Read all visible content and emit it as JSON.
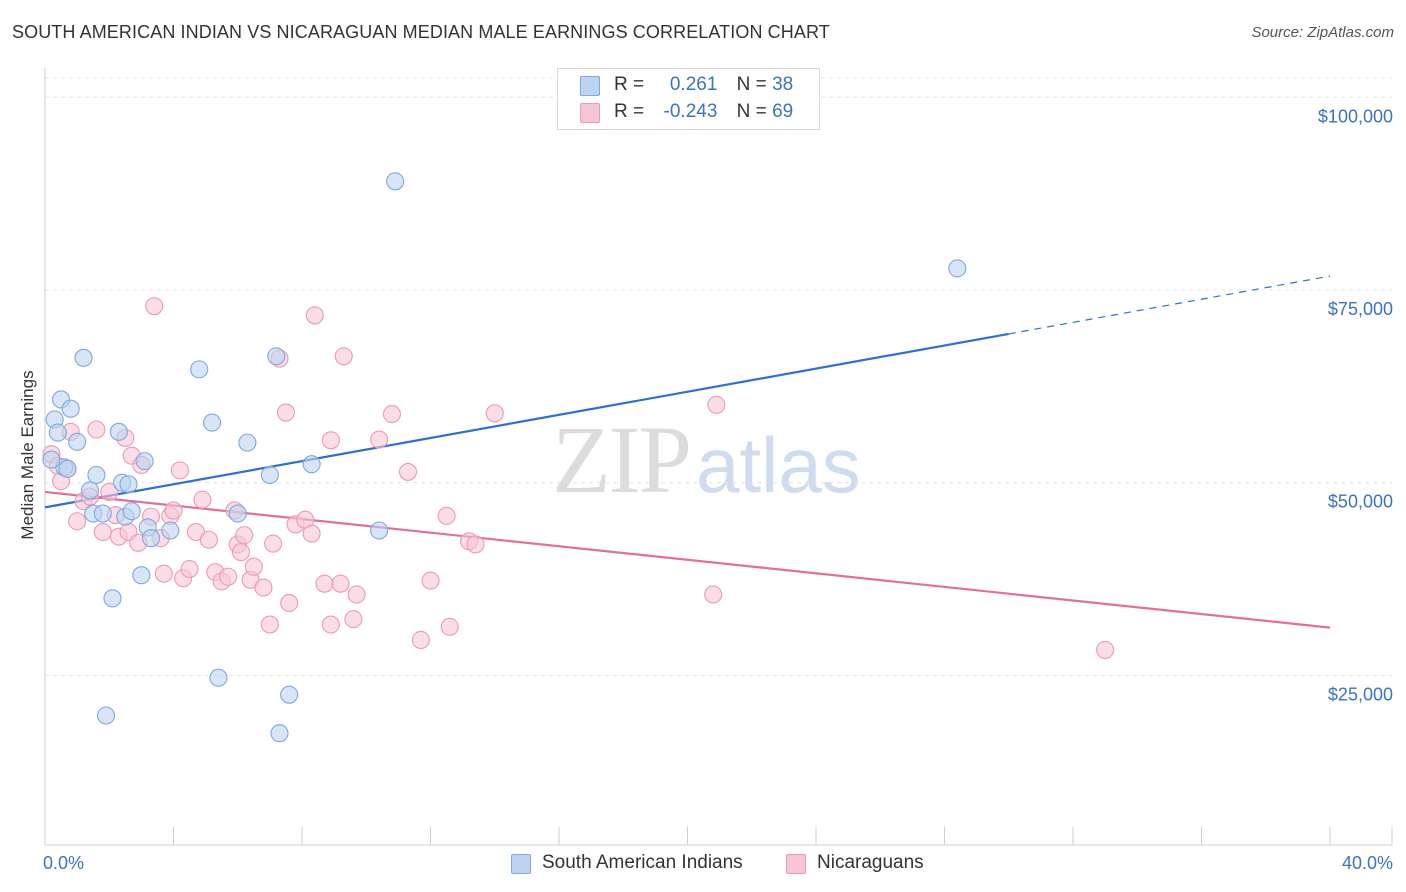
{
  "title": "SOUTH AMERICAN INDIAN VS NICARAGUAN MEDIAN MALE EARNINGS CORRELATION CHART",
  "source": "Source: ZipAtlas.com",
  "watermark": {
    "zip": "ZIP",
    "atlas": "atlas"
  },
  "legend": [
    {
      "r_label": "R =",
      "r_value": "0.261",
      "n_label": "N =",
      "n_value": "38"
    },
    {
      "r_label": "R =",
      "r_value": "-0.243",
      "n_label": "N =",
      "n_value": "69"
    }
  ],
  "colors": {
    "blue_fill": "#bcd3f2",
    "blue_stroke": "#7fa8dd",
    "blue_line": "#2f6fd0",
    "pink_fill": "#f7c6d5",
    "pink_stroke": "#ec9ab4",
    "pink_line": "#e0709a",
    "grid": "#e3e3e3",
    "axis_text": "#3b73c4"
  },
  "chart_data": {
    "type": "scatter",
    "xlabel": "",
    "ylabel": "Median Male Earnings",
    "x_tick_labels": [
      "0.0%",
      "40.0%"
    ],
    "y_tick_labels": [
      "$100,000",
      "$75,000",
      "$50,000",
      "$25,000"
    ],
    "y_tick_values": [
      100000,
      75000,
      50000,
      25000
    ],
    "xlim": [
      0,
      40
    ],
    "ylim": [
      3000,
      102500
    ],
    "grid": true,
    "legend_position": "top-center",
    "series": [
      {
        "name": "South American Indians",
        "color": "#bcd3f2",
        "trend": {
          "x0": 0,
          "y0": 46800,
          "x1": 30,
          "y1": 69300,
          "x_dash_end": 40,
          "y_dash_end": 76800
        },
        "points": [
          [
            0.3,
            58200
          ],
          [
            0.4,
            56500
          ],
          [
            0.5,
            60800
          ],
          [
            0.6,
            52000
          ],
          [
            0.8,
            59600
          ],
          [
            1.0,
            55300
          ],
          [
            1.2,
            66200
          ],
          [
            1.4,
            49000
          ],
          [
            1.5,
            46000
          ],
          [
            1.6,
            51000
          ],
          [
            1.8,
            46000
          ],
          [
            2.1,
            35000
          ],
          [
            2.3,
            56600
          ],
          [
            2.4,
            50000
          ],
          [
            2.5,
            45600
          ],
          [
            2.6,
            49800
          ],
          [
            2.7,
            46300
          ],
          [
            3.0,
            38000
          ],
          [
            3.1,
            52800
          ],
          [
            3.2,
            44200
          ],
          [
            3.3,
            42800
          ],
          [
            3.9,
            43800
          ],
          [
            4.8,
            64700
          ],
          [
            5.2,
            57800
          ],
          [
            5.4,
            24700
          ],
          [
            6.0,
            46000
          ],
          [
            6.3,
            55200
          ],
          [
            7.0,
            51000
          ],
          [
            7.2,
            66400
          ],
          [
            7.3,
            17500
          ],
          [
            7.6,
            22500
          ],
          [
            8.3,
            52400
          ],
          [
            10.4,
            43800
          ],
          [
            10.9,
            89100
          ],
          [
            1.9,
            19800
          ],
          [
            28.4,
            77800
          ],
          [
            0.2,
            53000
          ],
          [
            0.7,
            51800
          ]
        ]
      },
      {
        "name": "Nicaraguans",
        "color": "#f7c6d5",
        "trend": {
          "x0": 0,
          "y0": 48800,
          "x1": 40,
          "y1": 31200
        },
        "points": [
          [
            0.2,
            53700
          ],
          [
            0.4,
            52200
          ],
          [
            0.5,
            50200
          ],
          [
            0.7,
            51800
          ],
          [
            0.8,
            56600
          ],
          [
            1.0,
            45000
          ],
          [
            1.2,
            47600
          ],
          [
            1.4,
            48200
          ],
          [
            1.6,
            56900
          ],
          [
            1.8,
            43600
          ],
          [
            2.0,
            48800
          ],
          [
            2.2,
            45800
          ],
          [
            2.3,
            43000
          ],
          [
            2.5,
            55800
          ],
          [
            2.6,
            43600
          ],
          [
            2.7,
            53500
          ],
          [
            2.9,
            42200
          ],
          [
            3.0,
            52300
          ],
          [
            3.3,
            45600
          ],
          [
            3.4,
            72900
          ],
          [
            3.6,
            42800
          ],
          [
            3.7,
            38200
          ],
          [
            3.9,
            45700
          ],
          [
            4.0,
            46400
          ],
          [
            4.2,
            51600
          ],
          [
            4.3,
            37600
          ],
          [
            4.5,
            38800
          ],
          [
            4.7,
            43600
          ],
          [
            4.9,
            47800
          ],
          [
            5.1,
            42600
          ],
          [
            5.3,
            38400
          ],
          [
            5.5,
            37200
          ],
          [
            5.7,
            37800
          ],
          [
            5.9,
            46400
          ],
          [
            6.0,
            42000
          ],
          [
            6.1,
            41000
          ],
          [
            6.2,
            43200
          ],
          [
            6.4,
            37400
          ],
          [
            6.5,
            39100
          ],
          [
            6.8,
            36400
          ],
          [
            7.0,
            31600
          ],
          [
            7.1,
            42100
          ],
          [
            7.3,
            66100
          ],
          [
            7.5,
            59100
          ],
          [
            7.6,
            34400
          ],
          [
            7.8,
            44600
          ],
          [
            8.1,
            45200
          ],
          [
            8.3,
            43400
          ],
          [
            8.4,
            71700
          ],
          [
            8.7,
            36900
          ],
          [
            8.9,
            31600
          ],
          [
            8.9,
            55500
          ],
          [
            9.2,
            36900
          ],
          [
            9.7,
            35500
          ],
          [
            9.6,
            32300
          ],
          [
            10.4,
            55600
          ],
          [
            10.8,
            58900
          ],
          [
            11.3,
            51400
          ],
          [
            11.7,
            29600
          ],
          [
            12.0,
            37300
          ],
          [
            12.5,
            45700
          ],
          [
            12.6,
            31300
          ],
          [
            13.2,
            42400
          ],
          [
            13.4,
            42000
          ],
          [
            14.0,
            59000
          ],
          [
            20.8,
            35500
          ],
          [
            20.9,
            60100
          ],
          [
            33.0,
            28300
          ],
          [
            9.3,
            66400
          ]
        ]
      }
    ]
  }
}
